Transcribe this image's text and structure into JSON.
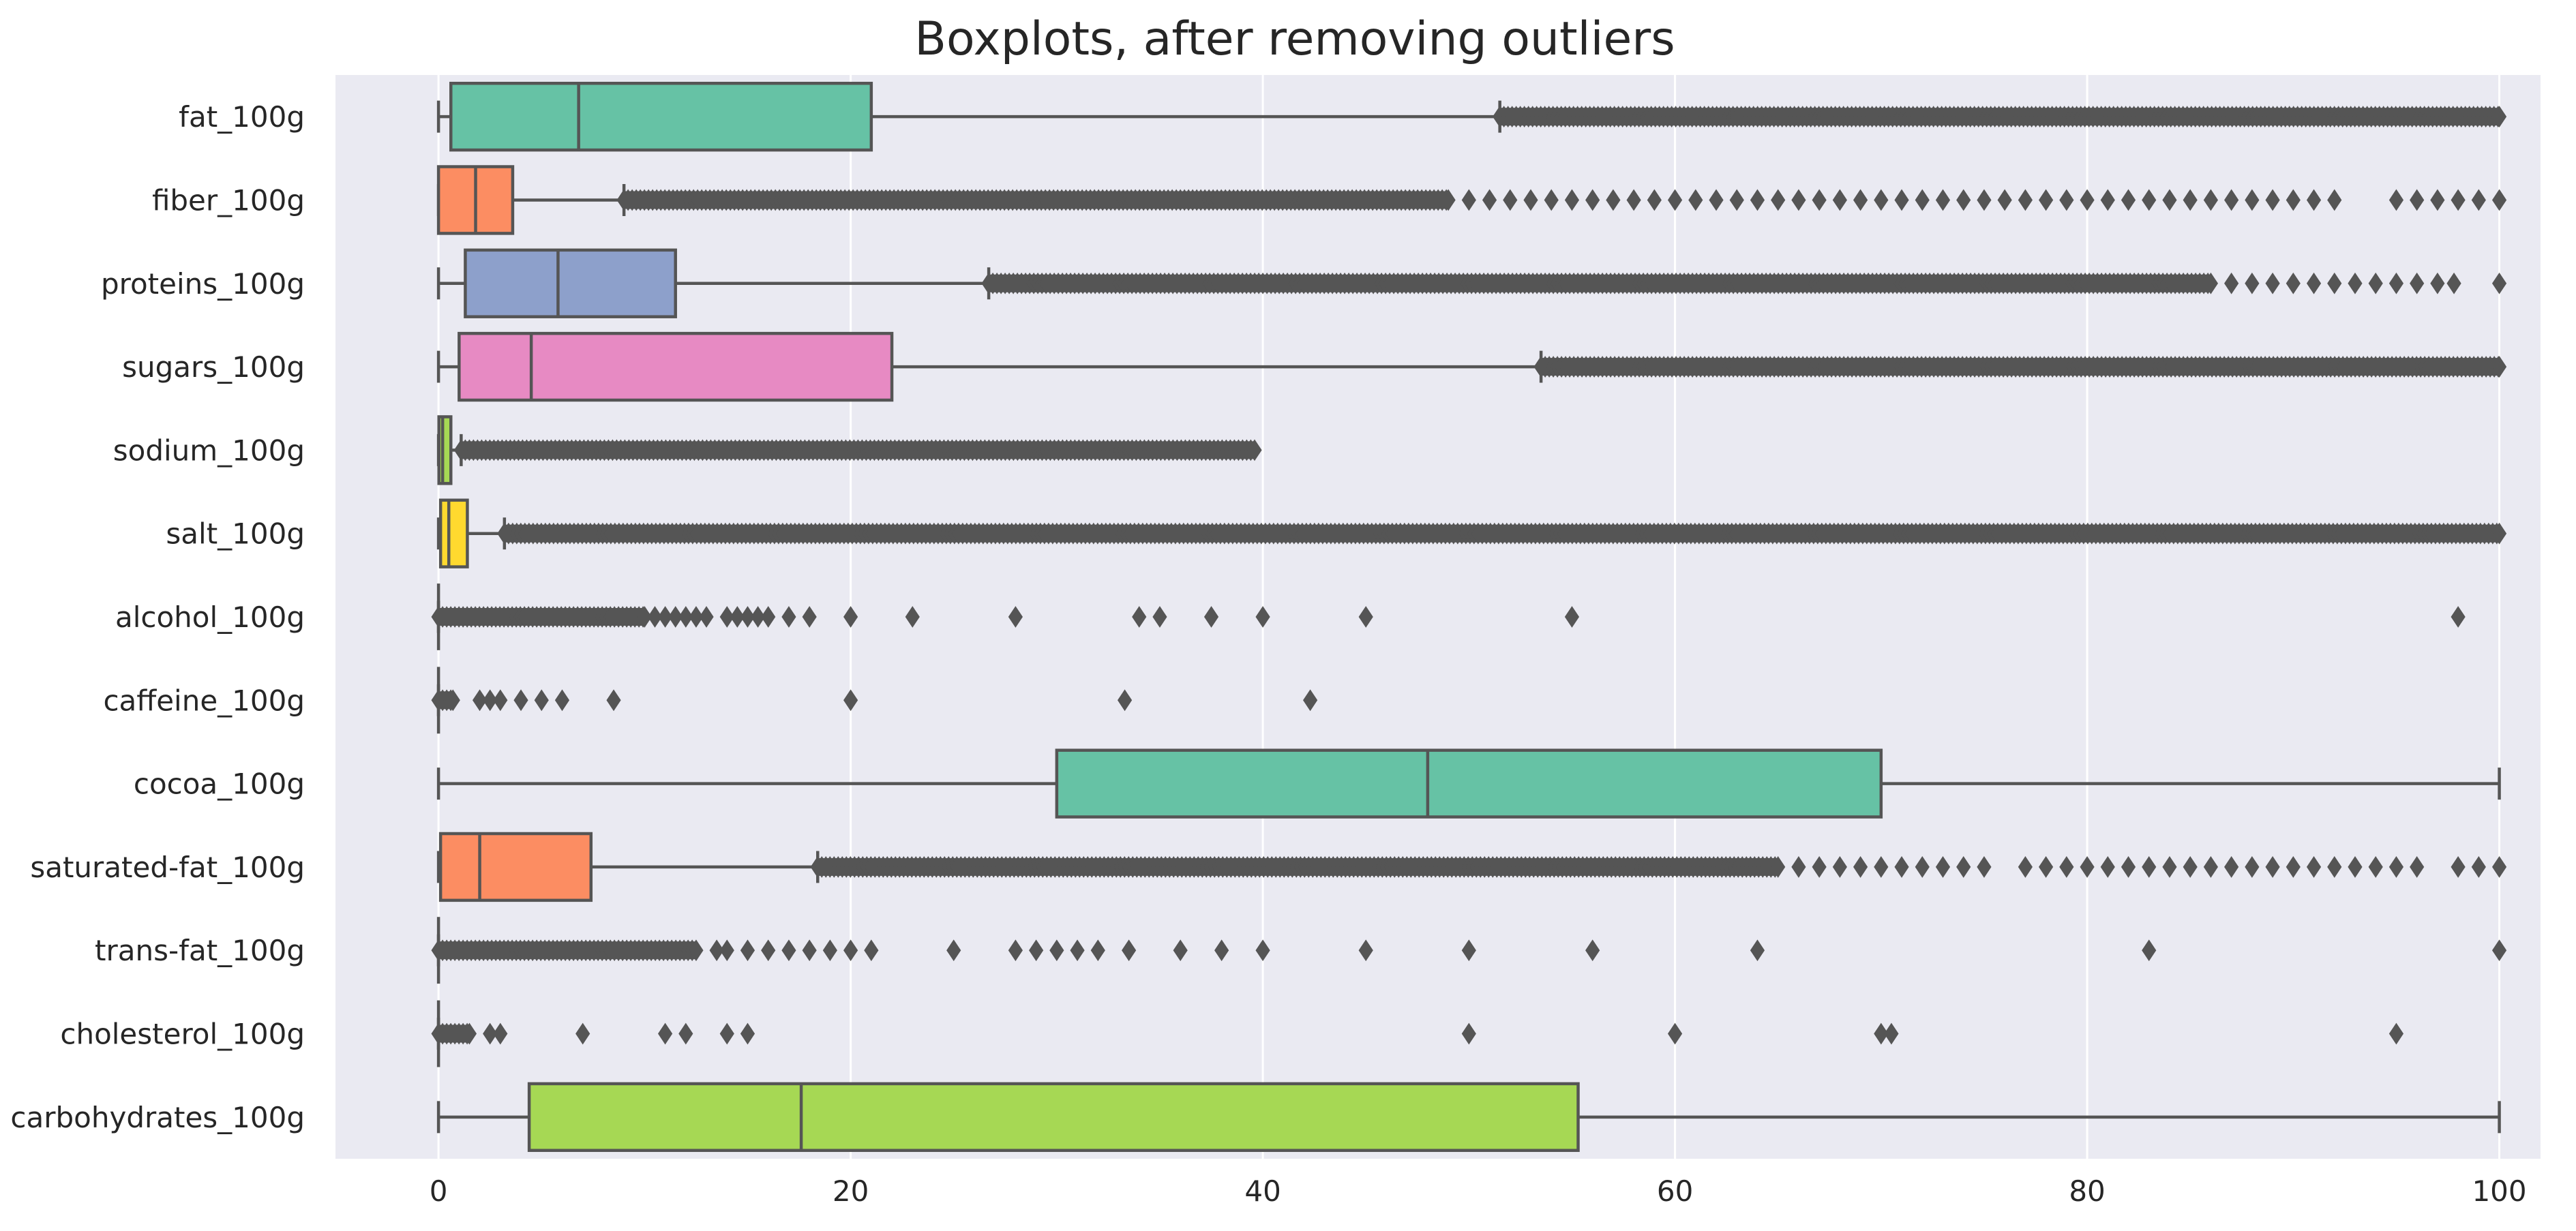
{
  "chart_data": {
    "type": "boxplot",
    "orientation": "horizontal",
    "title": "Boxplots, after removing outliers",
    "xlabel": "",
    "ylabel": "",
    "xlim": [
      -5,
      102
    ],
    "xticks": [
      0,
      20,
      40,
      60,
      80,
      100
    ],
    "grid": true,
    "legend": "none",
    "style": {
      "background": "#EAEAF2",
      "grid_color": "#FFFFFF",
      "line_color": "#555555"
    },
    "series": [
      {
        "name": "fat_100g",
        "color": "#66C2A5",
        "whisker_low": 0,
        "q1": 0.6,
        "median": 6.8,
        "q3": 21,
        "whisker_high": 51.5,
        "outliers_dense": [
          [
            51.5,
            100
          ]
        ],
        "outliers": []
      },
      {
        "name": "fiber_100g",
        "color": "#FC8D62",
        "whisker_low": 0,
        "q1": 0,
        "median": 1.8,
        "q3": 3.6,
        "whisker_high": 9,
        "outliers_dense": [
          [
            9,
            49
          ]
        ],
        "outliers": [
          50,
          51,
          52,
          53,
          54,
          55,
          56,
          57,
          58,
          59,
          60,
          61,
          62,
          63,
          64,
          65,
          66,
          67,
          68,
          69,
          70,
          71,
          72,
          73,
          74,
          75,
          76,
          77,
          78,
          79,
          80,
          81,
          82,
          83,
          84,
          85,
          86,
          87,
          88,
          89,
          90,
          91,
          92,
          95,
          96,
          97,
          98,
          99,
          100
        ]
      },
      {
        "name": "proteins_100g",
        "color": "#8DA0CB",
        "whisker_low": 0,
        "q1": 1.3,
        "median": 5.8,
        "q3": 11.5,
        "whisker_high": 26.7,
        "outliers_dense": [
          [
            26.7,
            86
          ]
        ],
        "outliers": [
          87,
          88,
          89,
          90,
          91,
          92,
          93,
          94,
          95,
          96,
          97,
          97.8,
          100
        ]
      },
      {
        "name": "sugars_100g",
        "color": "#E78AC3",
        "whisker_low": 0,
        "q1": 1,
        "median": 4.5,
        "q3": 22,
        "whisker_high": 53.5,
        "outliers_dense": [
          [
            53.5,
            100
          ]
        ],
        "outliers": []
      },
      {
        "name": "sodium_100g",
        "color": "#A6D854",
        "whisker_low": 0,
        "q1": 0.02,
        "median": 0.2,
        "q3": 0.6,
        "whisker_high": 1.1,
        "outliers_dense": [
          [
            1.1,
            39.6
          ]
        ],
        "outliers": []
      },
      {
        "name": "salt_100g",
        "color": "#FFD92F",
        "whisker_low": 0,
        "q1": 0.1,
        "median": 0.5,
        "q3": 1.4,
        "whisker_high": 3.2,
        "outliers_dense": [
          [
            3.2,
            100
          ]
        ],
        "outliers": []
      },
      {
        "name": "alcohol_100g",
        "color": "#E5C494",
        "whisker_low": 0,
        "q1": 0,
        "median": 0,
        "q3": 0,
        "whisker_high": 0,
        "outliers_dense": [
          [
            0,
            10
          ]
        ],
        "outliers": [
          10.5,
          11,
          11.5,
          12,
          12.5,
          13,
          14,
          14.5,
          15,
          15.5,
          16,
          17,
          18,
          20,
          23,
          28,
          34,
          35,
          37.5,
          40,
          45,
          55,
          98
        ]
      },
      {
        "name": "caffeine_100g",
        "color": "#B3B3B3",
        "whisker_low": 0,
        "q1": 0,
        "median": 0,
        "q3": 0,
        "whisker_high": 0,
        "outliers_dense": [
          [
            0,
            0.7
          ]
        ],
        "outliers": [
          2,
          2.5,
          3,
          4,
          5,
          6,
          8.5,
          20,
          33.3,
          42.3
        ]
      },
      {
        "name": "cocoa_100g",
        "color": "#66C2A5",
        "whisker_low": 0,
        "q1": 30,
        "median": 48,
        "q3": 70,
        "whisker_high": 100,
        "outliers_dense": [],
        "outliers": []
      },
      {
        "name": "saturated-fat_100g",
        "color": "#FC8D62",
        "whisker_low": 0,
        "q1": 0.1,
        "median": 2,
        "q3": 7.4,
        "whisker_high": 18.4,
        "outliers_dense": [
          [
            18.4,
            65
          ]
        ],
        "outliers": [
          66,
          67,
          68,
          69,
          70,
          71,
          72,
          73,
          74,
          75,
          77,
          78,
          79,
          80,
          81,
          82,
          83,
          84,
          85,
          86,
          87,
          88,
          89,
          90,
          91,
          92,
          93,
          94,
          95,
          96,
          98,
          99,
          100
        ]
      },
      {
        "name": "trans-fat_100g",
        "color": "#8DA0CB",
        "whisker_low": 0,
        "q1": 0,
        "median": 0,
        "q3": 0,
        "whisker_high": 0,
        "outliers_dense": [
          [
            0,
            12.5
          ]
        ],
        "outliers": [
          13.5,
          14,
          15,
          16,
          17,
          18,
          19,
          20,
          21,
          25,
          28,
          29,
          30,
          31,
          32,
          33.5,
          36,
          38,
          40,
          45,
          50,
          56,
          64,
          83,
          100
        ]
      },
      {
        "name": "cholesterol_100g",
        "color": "#E78AC3",
        "whisker_low": 0,
        "q1": 0,
        "median": 0,
        "q3": 0,
        "whisker_high": 0,
        "outliers_dense": [
          [
            0,
            1.5
          ]
        ],
        "outliers": [
          2.5,
          3,
          7,
          11,
          12,
          14,
          15,
          50,
          60,
          70,
          70.5,
          95
        ]
      },
      {
        "name": "carbohydrates_100g",
        "color": "#A6D854",
        "whisker_low": 0,
        "q1": 4.4,
        "median": 17.6,
        "q3": 55.3,
        "whisker_high": 100,
        "outliers_dense": [],
        "outliers": []
      }
    ]
  }
}
